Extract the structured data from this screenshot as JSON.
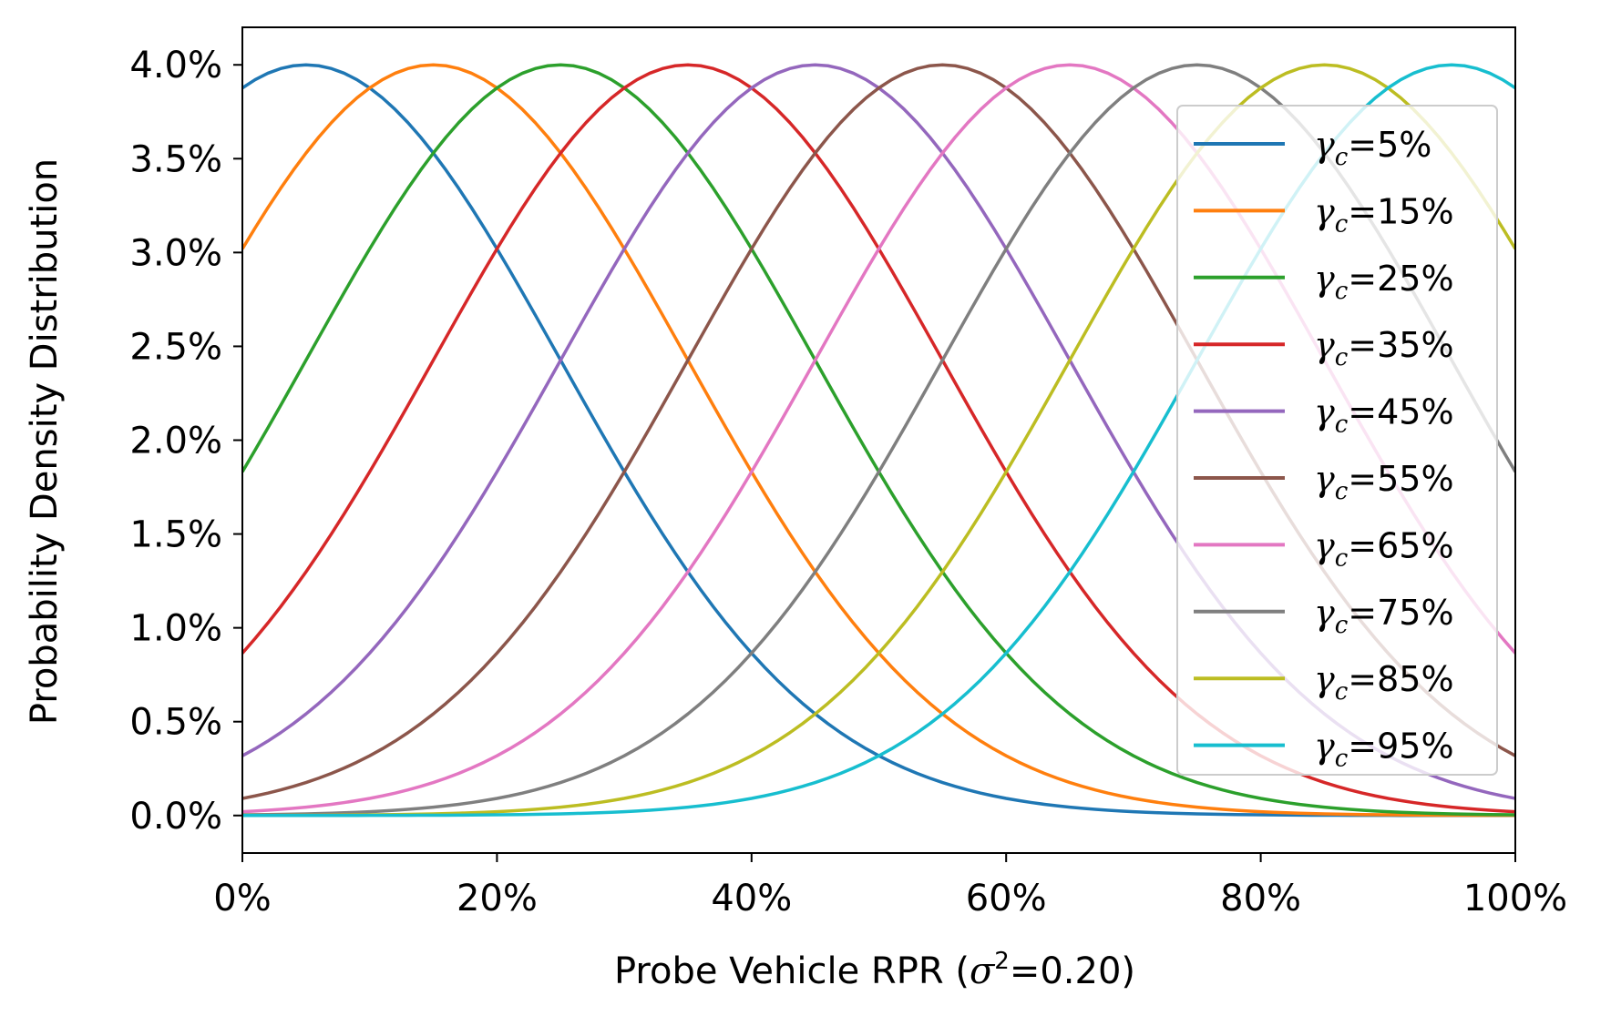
{
  "chart_data": {
    "type": "line",
    "title": "",
    "xlabel_prefix": "Probe Vehicle RPR (",
    "xlabel_symbol": "σ",
    "xlabel_sup": "2",
    "xlabel_suffix": "=0.20)",
    "ylabel": "Probability Density Distribution",
    "x_range": [
      0,
      1
    ],
    "y_range": [
      -0.002,
      0.042
    ],
    "x_ticks": [
      0,
      0.2,
      0.4,
      0.6,
      0.8,
      1.0
    ],
    "x_tick_labels": [
      "0%",
      "20%",
      "40%",
      "60%",
      "80%",
      "100%"
    ],
    "y_ticks": [
      0,
      0.005,
      0.01,
      0.015,
      0.02,
      0.025,
      0.03,
      0.035,
      0.04
    ],
    "y_tick_labels": [
      "0.0%",
      "0.5%",
      "1.0%",
      "1.5%",
      "2.0%",
      "2.5%",
      "3.0%",
      "3.5%",
      "4.0%"
    ],
    "grid": false,
    "legend_position": "right",
    "legend_symbol": "γ",
    "legend_subscript": "c",
    "curve": {
      "model": "gaussian",
      "sigma_squared": 0.2,
      "peak": 0.04,
      "x_step": 0.01
    },
    "series": [
      {
        "label_value": "=5%",
        "mean": 0.05,
        "color": "#1f77b4"
      },
      {
        "label_value": "=15%",
        "mean": 0.15,
        "color": "#ff7f0e"
      },
      {
        "label_value": "=25%",
        "mean": 0.25,
        "color": "#2ca02c"
      },
      {
        "label_value": "=35%",
        "mean": 0.35,
        "color": "#d62728"
      },
      {
        "label_value": "=45%",
        "mean": 0.45,
        "color": "#9467bd"
      },
      {
        "label_value": "=55%",
        "mean": 0.55,
        "color": "#8c564b"
      },
      {
        "label_value": "=65%",
        "mean": 0.65,
        "color": "#e377c2"
      },
      {
        "label_value": "=75%",
        "mean": 0.75,
        "color": "#7f7f7f"
      },
      {
        "label_value": "=85%",
        "mean": 0.85,
        "color": "#bcbd22"
      },
      {
        "label_value": "=95%",
        "mean": 0.95,
        "color": "#17becf"
      }
    ]
  }
}
